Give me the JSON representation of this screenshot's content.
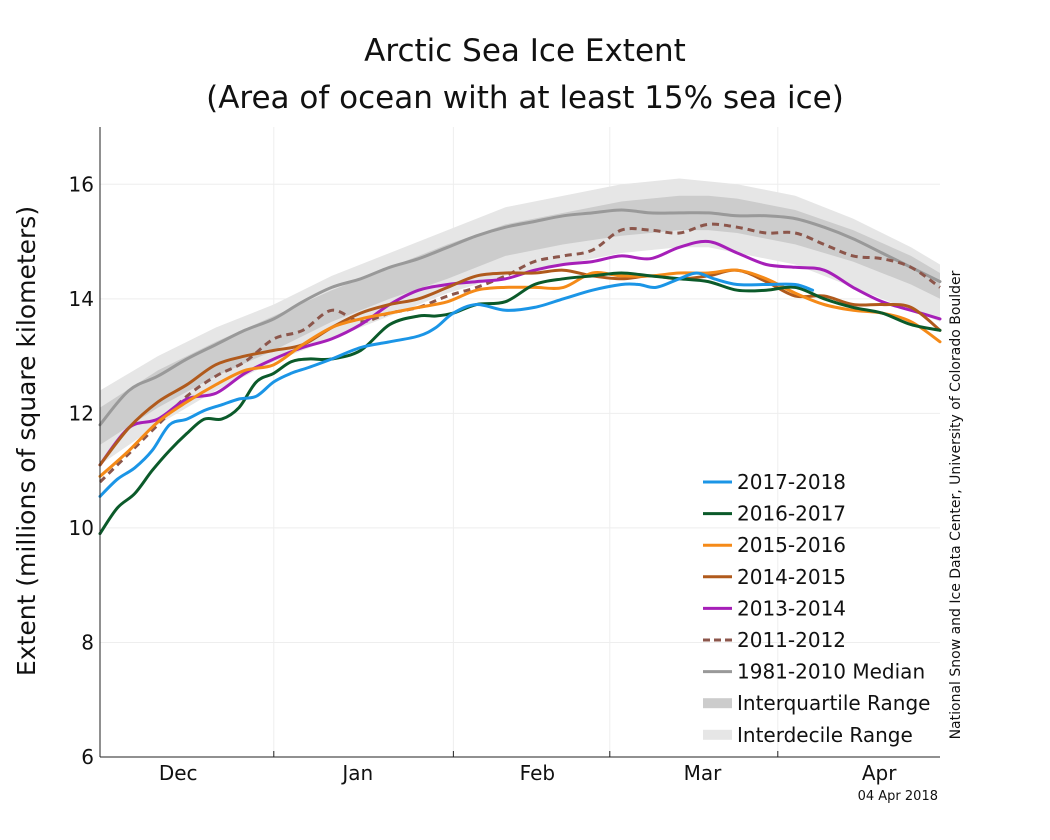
{
  "chart_data": {
    "type": "line",
    "title": "Arctic Sea Ice Extent",
    "subtitle": "(Area of ocean with at least 15% sea ice)",
    "ylabel": "Extent (millions of square kilometers)",
    "xlabel": "",
    "ylim": [
      6,
      17
    ],
    "xlim": [
      0,
      145
    ],
    "yticks": [
      6,
      8,
      10,
      12,
      14,
      16
    ],
    "x_unit": "days since Nov 20",
    "month_labels": [
      {
        "label": "Dec",
        "x": 13.5
      },
      {
        "label": "Jan",
        "x": 44.5
      },
      {
        "label": "Feb",
        "x": 75.5
      },
      {
        "label": "Mar",
        "x": 104
      },
      {
        "label": "Apr",
        "x": 134.5
      }
    ],
    "month_boundaries": [
      30,
      61,
      88,
      117
    ],
    "credit": "National Snow and Ice Data Center, University of Colorado Boulder",
    "date": "04 Apr 2018",
    "legend_position": "bottom-right",
    "interdecile": {
      "name": "Interdecile Range",
      "color": "#e6e6e6",
      "x": [
        0,
        10,
        20,
        30,
        40,
        50,
        60,
        70,
        80,
        90,
        100,
        105,
        110,
        120,
        130,
        140,
        145
      ],
      "upper": [
        12.4,
        13.0,
        13.5,
        13.9,
        14.4,
        14.8,
        15.2,
        15.6,
        15.8,
        16.0,
        16.1,
        16.05,
        16.0,
        15.8,
        15.4,
        14.9,
        14.6
      ],
      "lower": [
        11.1,
        11.8,
        12.4,
        12.9,
        13.3,
        13.7,
        14.1,
        14.4,
        14.6,
        14.8,
        14.9,
        14.9,
        14.8,
        14.6,
        14.2,
        13.8,
        13.6
      ]
    },
    "interquartile": {
      "name": "Interquartile Range",
      "color": "#cccccc",
      "x": [
        0,
        10,
        20,
        30,
        40,
        50,
        60,
        70,
        80,
        90,
        100,
        105,
        110,
        120,
        130,
        140,
        145
      ],
      "upper": [
        12.1,
        12.75,
        13.25,
        13.7,
        14.15,
        14.55,
        14.95,
        15.3,
        15.5,
        15.7,
        15.8,
        15.8,
        15.75,
        15.55,
        15.2,
        14.75,
        14.45
      ],
      "lower": [
        11.45,
        12.1,
        12.65,
        13.1,
        13.6,
        14.0,
        14.35,
        14.75,
        14.95,
        15.1,
        15.2,
        15.2,
        15.15,
        14.95,
        14.65,
        14.25,
        14.0
      ]
    },
    "series": [
      {
        "name": "1981-2010 Median",
        "color": "#999999",
        "dashed": false,
        "width": 3,
        "x": [
          0,
          5,
          10,
          15,
          20,
          25,
          30,
          35,
          40,
          45,
          50,
          55,
          60,
          65,
          70,
          75,
          80,
          85,
          90,
          95,
          100,
          105,
          110,
          115,
          120,
          125,
          130,
          135,
          140,
          145
        ],
        "values": [
          11.8,
          12.4,
          12.65,
          12.95,
          13.2,
          13.45,
          13.65,
          13.95,
          14.2,
          14.35,
          14.55,
          14.7,
          14.9,
          15.1,
          15.25,
          15.35,
          15.45,
          15.5,
          15.55,
          15.5,
          15.5,
          15.5,
          15.45,
          15.45,
          15.4,
          15.25,
          15.05,
          14.8,
          14.55,
          14.3
        ]
      },
      {
        "name": "2011-2012",
        "color": "#8c564b",
        "dashed": true,
        "width": 3,
        "x": [
          0,
          5,
          10,
          15,
          20,
          25,
          30,
          35,
          40,
          45,
          50,
          55,
          60,
          65,
          70,
          75,
          80,
          85,
          90,
          95,
          100,
          105,
          110,
          115,
          120,
          125,
          130,
          135,
          140,
          145
        ],
        "values": [
          10.8,
          11.3,
          11.8,
          12.3,
          12.65,
          12.9,
          13.3,
          13.45,
          13.8,
          13.6,
          13.75,
          13.85,
          14.05,
          14.2,
          14.4,
          14.65,
          14.75,
          14.85,
          15.2,
          15.2,
          15.15,
          15.3,
          15.25,
          15.15,
          15.15,
          14.95,
          14.75,
          14.7,
          14.55,
          14.2
        ]
      },
      {
        "name": "2013-2014",
        "color": "#a61fb8",
        "dashed": false,
        "width": 3,
        "x": [
          0,
          5,
          10,
          15,
          20,
          25,
          30,
          35,
          40,
          45,
          50,
          55,
          60,
          65,
          70,
          75,
          80,
          85,
          90,
          95,
          100,
          105,
          110,
          115,
          120,
          125,
          130,
          135,
          140,
          145
        ],
        "values": [
          11.1,
          11.75,
          11.9,
          12.25,
          12.35,
          12.7,
          12.95,
          13.15,
          13.3,
          13.55,
          13.9,
          14.15,
          14.25,
          14.3,
          14.35,
          14.5,
          14.6,
          14.65,
          14.75,
          14.7,
          14.9,
          15.0,
          14.8,
          14.6,
          14.55,
          14.5,
          14.2,
          13.95,
          13.8,
          13.65
        ]
      },
      {
        "name": "2014-2015",
        "color": "#b05a1c",
        "dashed": false,
        "width": 3,
        "x": [
          0,
          5,
          10,
          15,
          20,
          25,
          30,
          35,
          40,
          45,
          50,
          55,
          60,
          65,
          70,
          75,
          80,
          85,
          90,
          95,
          100,
          105,
          110,
          115,
          120,
          125,
          130,
          135,
          140,
          145
        ],
        "values": [
          11.1,
          11.75,
          12.2,
          12.5,
          12.85,
          13.0,
          13.1,
          13.2,
          13.5,
          13.75,
          13.9,
          14.0,
          14.2,
          14.4,
          14.45,
          14.45,
          14.5,
          14.4,
          14.35,
          14.4,
          14.35,
          14.4,
          14.5,
          14.3,
          14.05,
          14.05,
          13.9,
          13.9,
          13.85,
          13.45
        ]
      },
      {
        "name": "2015-2016",
        "color": "#f58a18",
        "dashed": false,
        "width": 3,
        "x": [
          0,
          5,
          10,
          15,
          20,
          25,
          30,
          35,
          40,
          45,
          50,
          55,
          60,
          65,
          70,
          75,
          80,
          85,
          90,
          95,
          100,
          105,
          110,
          115,
          120,
          125,
          130,
          135,
          140,
          145
        ],
        "values": [
          10.9,
          11.35,
          11.85,
          12.2,
          12.5,
          12.75,
          12.85,
          13.2,
          13.5,
          13.65,
          13.75,
          13.85,
          13.95,
          14.15,
          14.2,
          14.2,
          14.2,
          14.45,
          14.4,
          14.4,
          14.45,
          14.45,
          14.5,
          14.35,
          14.1,
          13.9,
          13.8,
          13.75,
          13.6,
          13.25
        ]
      },
      {
        "name": "2016-2017",
        "color": "#0b5a2a",
        "dashed": false,
        "width": 3,
        "x": [
          0,
          3,
          6,
          9,
          12,
          15,
          18,
          21,
          24,
          27,
          30,
          33,
          36,
          40,
          45,
          50,
          55,
          58,
          61,
          65,
          70,
          75,
          80,
          85,
          90,
          95,
          100,
          105,
          110,
          115,
          120,
          125,
          130,
          135,
          140,
          145
        ],
        "values": [
          9.9,
          10.35,
          10.6,
          11.0,
          11.35,
          11.65,
          11.9,
          11.9,
          12.1,
          12.55,
          12.7,
          12.9,
          12.95,
          12.95,
          13.1,
          13.55,
          13.7,
          13.7,
          13.75,
          13.9,
          13.95,
          14.25,
          14.35,
          14.4,
          14.45,
          14.4,
          14.35,
          14.3,
          14.15,
          14.15,
          14.2,
          14.0,
          13.85,
          13.75,
          13.55,
          13.45
        ]
      },
      {
        "name": "2017-2018",
        "color": "#1b95e6",
        "dashed": false,
        "width": 3,
        "x": [
          0,
          3,
          6,
          9,
          12,
          15,
          18,
          21,
          24,
          27,
          30,
          33,
          36,
          40,
          45,
          50,
          55,
          58,
          61,
          65,
          70,
          75,
          80,
          85,
          90,
          93,
          96,
          100,
          103,
          106,
          110,
          115,
          120,
          123
        ],
        "values": [
          10.55,
          10.85,
          11.05,
          11.35,
          11.8,
          11.9,
          12.05,
          12.15,
          12.25,
          12.3,
          12.55,
          12.7,
          12.8,
          12.95,
          13.15,
          13.25,
          13.35,
          13.5,
          13.75,
          13.9,
          13.8,
          13.85,
          14.0,
          14.15,
          14.25,
          14.25,
          14.2,
          14.35,
          14.45,
          14.35,
          14.25,
          14.25,
          14.25,
          14.15
        ]
      }
    ],
    "legend": [
      {
        "label": "2017-2018",
        "kind": "line",
        "color": "#1b95e6",
        "dashed": false
      },
      {
        "label": "2016-2017",
        "kind": "line",
        "color": "#0b5a2a",
        "dashed": false
      },
      {
        "label": "2015-2016",
        "kind": "line",
        "color": "#f58a18",
        "dashed": false
      },
      {
        "label": "2014-2015",
        "kind": "line",
        "color": "#b05a1c",
        "dashed": false
      },
      {
        "label": "2013-2014",
        "kind": "line",
        "color": "#a61fb8",
        "dashed": false
      },
      {
        "label": "2011-2012",
        "kind": "line",
        "color": "#8c564b",
        "dashed": true
      },
      {
        "label": "1981-2010 Median",
        "kind": "line",
        "color": "#999999",
        "dashed": false
      },
      {
        "label": "Interquartile Range",
        "kind": "band",
        "color": "#cccccc",
        "dashed": false
      },
      {
        "label": "Interdecile Range",
        "kind": "band",
        "color": "#e6e6e6",
        "dashed": false
      }
    ]
  }
}
